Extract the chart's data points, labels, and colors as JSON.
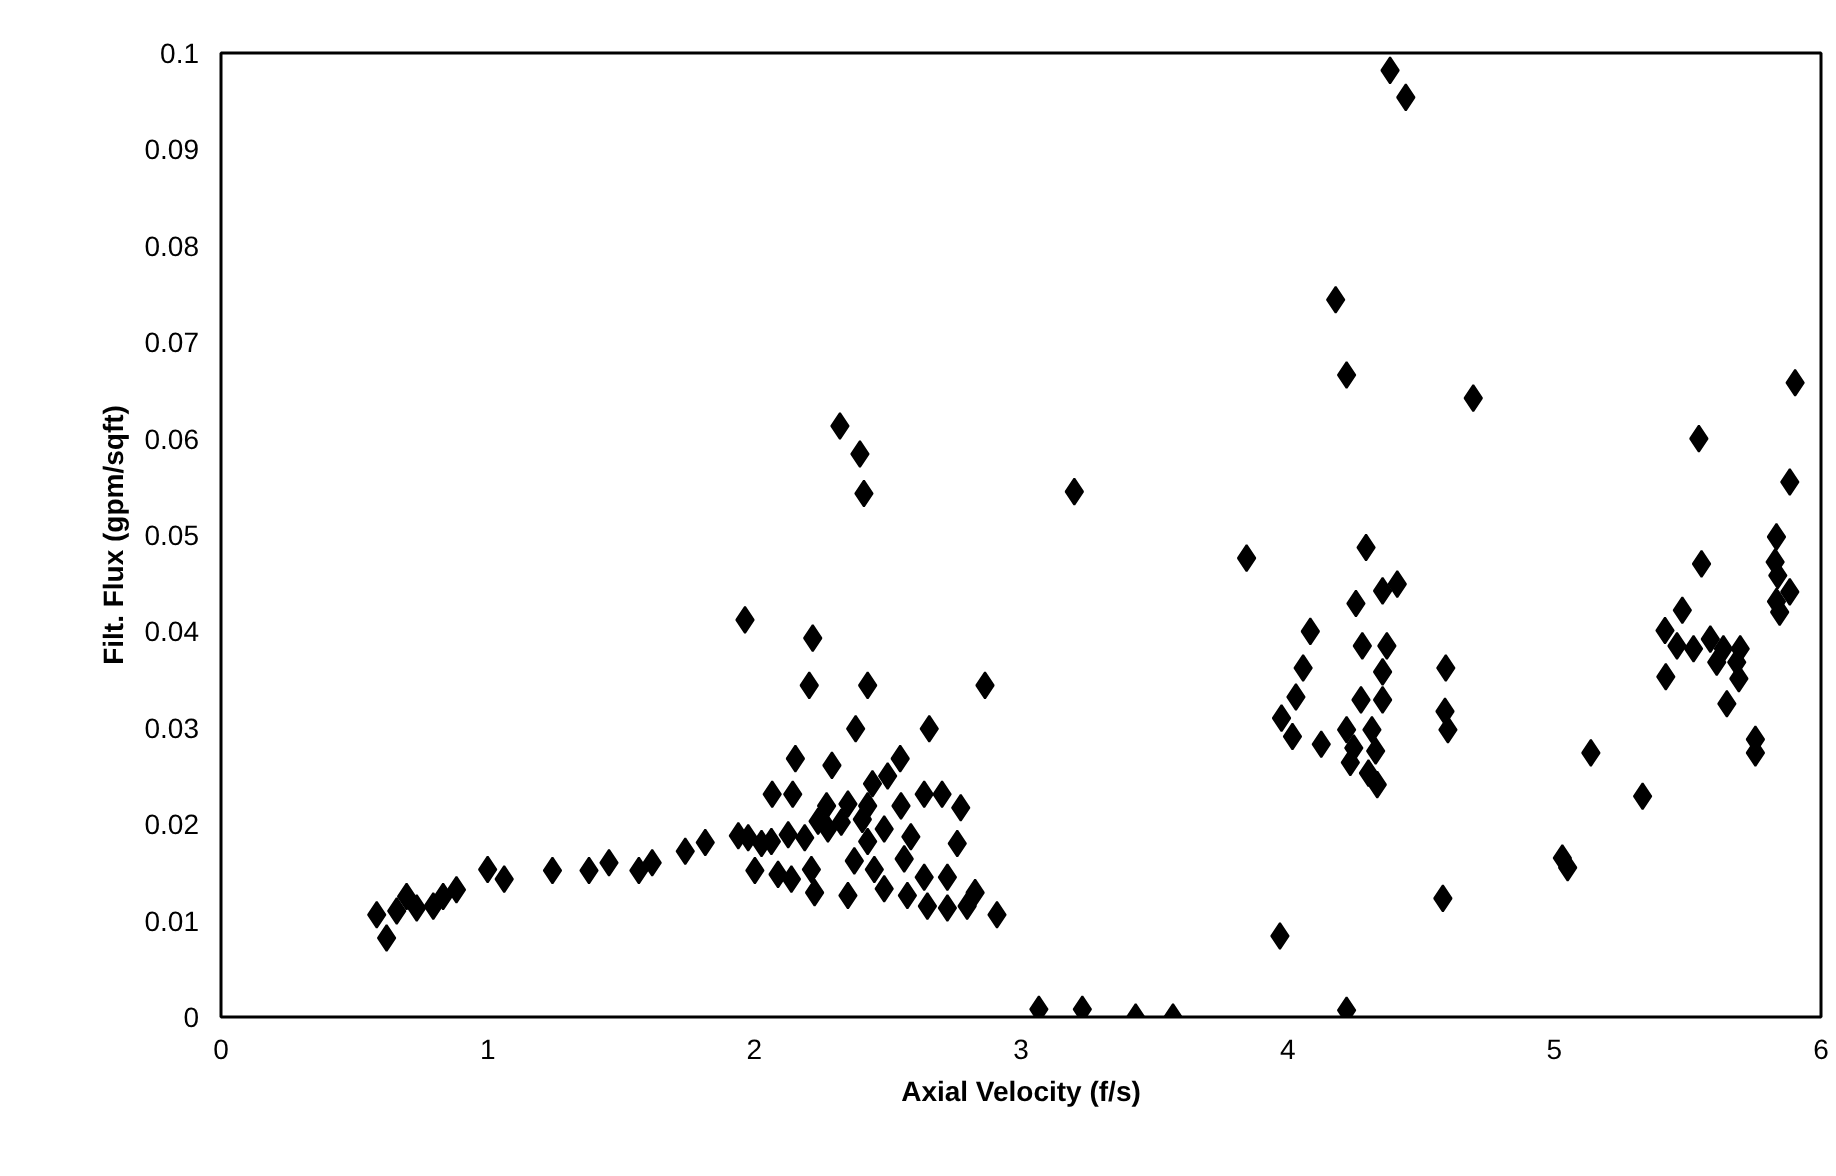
{
  "chart_data": {
    "type": "scatter",
    "xlabel": "Axial Velocity (f/s)",
    "ylabel": "Filt. Flux (gpm/sqft)",
    "xlim": [
      0,
      6
    ],
    "ylim": [
      0,
      0.1
    ],
    "xticks": [
      0,
      1,
      2,
      3,
      4,
      5,
      6
    ],
    "yticks": [
      0,
      0.01,
      0.02,
      0.03,
      0.04,
      0.05,
      0.06,
      0.07,
      0.08,
      0.09,
      0.1
    ],
    "grid": false,
    "marker": "diamond",
    "series": [
      {
        "color": "#000000",
        "x": [
          0.584,
          0.621,
          0.659,
          0.696,
          0.734,
          0.796,
          0.833,
          0.883,
          1.0,
          1.062,
          1.243,
          1.38,
          1.455,
          1.567,
          1.617,
          1.741,
          1.816,
          1.94,
          2.027,
          2.321,
          2.396,
          2.411,
          1.965,
          2.219,
          2.206,
          2.425,
          2.865,
          2.38,
          2.656,
          2.154,
          2.291,
          2.547,
          2.5,
          2.443,
          2.067,
          2.144,
          2.637,
          2.704,
          2.774,
          2.271,
          2.351,
          2.425,
          2.55,
          2.239,
          2.326,
          2.405,
          2.487,
          2.587,
          2.761,
          2.425,
          1.977,
          2.064,
          2.127,
          2.189,
          2.276,
          2.002,
          2.089,
          2.139,
          2.214,
          2.226,
          2.351,
          2.375,
          2.45,
          2.562,
          2.487,
          2.574,
          2.637,
          2.649,
          2.724,
          2.724,
          2.798,
          2.828,
          2.91,
          3.067,
          3.23,
          3.43,
          3.57,
          3.2,
          4.384,
          4.443,
          4.18,
          4.221,
          4.696,
          3.846,
          4.294,
          4.256,
          4.356,
          4.411,
          4.085,
          4.28,
          4.372,
          4.058,
          4.593,
          4.031,
          3.977,
          4.018,
          4.59,
          4.601,
          4.126,
          4.221,
          4.275,
          4.356,
          4.356,
          4.235,
          4.303,
          4.336,
          4.248,
          4.316,
          4.33,
          4.582,
          3.971,
          4.221,
          5.903,
          5.542,
          5.883,
          5.833,
          5.552,
          5.828,
          5.838,
          5.883,
          5.833,
          5.845,
          5.48,
          5.415,
          5.46,
          5.522,
          5.585,
          5.634,
          5.684,
          5.697,
          5.609,
          5.418,
          5.692,
          5.647,
          5.754,
          5.754,
          5.137,
          5.331,
          5.03,
          5.05
        ],
        "values": [
          0.0106,
          0.0082,
          0.011,
          0.0125,
          0.0113,
          0.0115,
          0.0125,
          0.0132,
          0.0153,
          0.0143,
          0.0152,
          0.0152,
          0.016,
          0.0152,
          0.016,
          0.0172,
          0.0181,
          0.0188,
          0.018,
          0.0613,
          0.0584,
          0.0543,
          0.0412,
          0.0393,
          0.0344,
          0.0344,
          0.0344,
          0.0299,
          0.0299,
          0.0268,
          0.0261,
          0.0268,
          0.025,
          0.0242,
          0.0231,
          0.0231,
          0.0231,
          0.0231,
          0.0217,
          0.0219,
          0.0221,
          0.0219,
          0.0219,
          0.0203,
          0.0202,
          0.0205,
          0.0195,
          0.0187,
          0.018,
          0.0182,
          0.0186,
          0.0182,
          0.0189,
          0.0186,
          0.0195,
          0.0152,
          0.0148,
          0.0143,
          0.0153,
          0.0129,
          0.0126,
          0.0162,
          0.0153,
          0.0164,
          0.0133,
          0.0126,
          0.0145,
          0.0115,
          0.0145,
          0.0113,
          0.0115,
          0.0129,
          0.0106,
          0.0008,
          0.0008,
          0.0,
          0.0,
          0.0545,
          0.0982,
          0.0954,
          0.0744,
          0.0666,
          0.0642,
          0.0476,
          0.0487,
          0.0429,
          0.0442,
          0.0449,
          0.04,
          0.0385,
          0.0385,
          0.0362,
          0.0362,
          0.0332,
          0.031,
          0.0291,
          0.0317,
          0.0298,
          0.0283,
          0.0298,
          0.0329,
          0.0358,
          0.0329,
          0.0264,
          0.0253,
          0.0241,
          0.0279,
          0.0298,
          0.0276,
          0.0123,
          0.0084,
          0.0007,
          0.0658,
          0.06,
          0.0555,
          0.0498,
          0.047,
          0.0472,
          0.0458,
          0.0441,
          0.0431,
          0.042,
          0.0422,
          0.0401,
          0.0385,
          0.0382,
          0.0392,
          0.0382,
          0.0368,
          0.0382,
          0.0368,
          0.0353,
          0.0351,
          0.0325,
          0.0288,
          0.0274,
          0.0274,
          0.0229,
          0.0165,
          0.0155
        ]
      }
    ]
  }
}
